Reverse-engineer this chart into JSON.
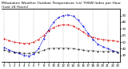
{
  "title": "Milwaukee Weather Outdoor Temperature (vs) THSW Index per Hour (Last 24 Hours)",
  "title_fontsize": 3.2,
  "figsize": [
    1.6,
    0.87
  ],
  "dpi": 100,
  "background_color": "#ffffff",
  "hours": [
    0,
    1,
    2,
    3,
    4,
    5,
    6,
    7,
    8,
    9,
    10,
    11,
    12,
    13,
    14,
    15,
    16,
    17,
    18,
    19,
    20,
    21,
    22,
    23
  ],
  "temp": [
    55,
    52,
    50,
    49,
    48,
    48,
    50,
    54,
    60,
    67,
    72,
    75,
    76,
    76,
    74,
    70,
    65,
    60,
    57,
    55,
    54,
    53,
    52,
    51
  ],
  "thsw": [
    42,
    38,
    35,
    33,
    30,
    29,
    32,
    40,
    55,
    68,
    80,
    87,
    90,
    91,
    89,
    83,
    74,
    63,
    54,
    47,
    43,
    40,
    37,
    35
  ],
  "dew": [
    38,
    36,
    35,
    34,
    33,
    33,
    34,
    35,
    38,
    40,
    41,
    41,
    41,
    41,
    40,
    39,
    38,
    37,
    37,
    36,
    36,
    36,
    36,
    35
  ],
  "temp_color": "#dd0000",
  "thsw_color": "#0000dd",
  "dew_color": "#111111",
  "ylim": [
    20,
    100
  ],
  "yticks_right": [
    30,
    40,
    50,
    60,
    70,
    80,
    90
  ],
  "grid_positions": [
    0,
    3,
    6,
    9,
    12,
    15,
    18,
    21
  ],
  "grid_color": "#bbbbbb",
  "line_width": 0.6,
  "marker_size": 0.9,
  "tick_fontsize": 2.8,
  "x_tick_hours": [
    0,
    1,
    2,
    3,
    4,
    5,
    6,
    7,
    8,
    9,
    10,
    11,
    12,
    13,
    14,
    15,
    16,
    17,
    18,
    19,
    20,
    21,
    22,
    23
  ],
  "x_tick_labels": [
    "0",
    "1",
    "2",
    "3",
    "4",
    "5",
    "6",
    "7",
    "8",
    "9",
    "10",
    "11",
    "12",
    "13",
    "14",
    "15",
    "16",
    "17",
    "18",
    "19",
    "20",
    "21",
    "22",
    "23"
  ]
}
